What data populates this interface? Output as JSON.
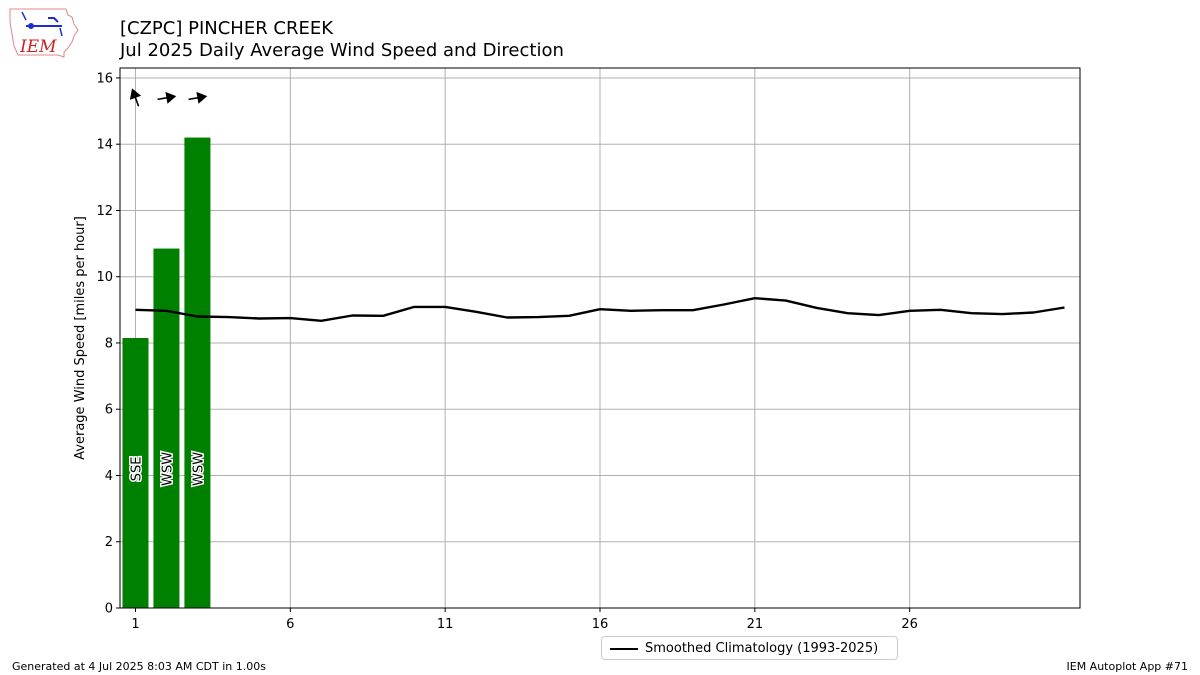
{
  "header": {
    "title_line1": "[CZPC] PINCHER CREEK",
    "title_line2": "Jul 2025 Daily Average Wind Speed and Direction"
  },
  "logo": {
    "text": "IEM"
  },
  "footer": {
    "left": "Generated at 4 Jul 2025 8:03 AM CDT in 1.00s",
    "right": "IEM Autoplot App #71"
  },
  "chart_data": {
    "type": "bar",
    "title": "[CZPC] PINCHER CREEK\nJul 2025 Daily Average Wind Speed and Direction",
    "ylabel": "Average Wind Speed [miles per hour]",
    "xlabel": "",
    "xlim": [
      0.5,
      31.5
    ],
    "ylim": [
      0,
      16.3
    ],
    "xticks": [
      1,
      6,
      11,
      16,
      21,
      26
    ],
    "yticks": [
      0,
      2,
      4,
      6,
      8,
      10,
      12,
      14,
      16
    ],
    "grid": true,
    "legend": {
      "placement": "bottom-center",
      "entries": [
        "Smoothed Climatology (1993-2025)"
      ]
    },
    "series": [
      {
        "type": "bar",
        "color": "#008000",
        "days": [
          1,
          2,
          3
        ],
        "values": [
          8.15,
          10.85,
          14.2
        ],
        "direction_labels": [
          "SSE",
          "WSW",
          "WSW"
        ],
        "arrow_bearings_deg": [
          -20,
          80,
          80
        ]
      },
      {
        "type": "line",
        "name": "Smoothed Climatology (1993-2025)",
        "color": "#000000",
        "x": [
          1,
          2,
          3,
          4,
          5,
          6,
          7,
          8,
          9,
          10,
          11,
          12,
          13,
          14,
          15,
          16,
          17,
          18,
          19,
          20,
          21,
          22,
          23,
          24,
          25,
          26,
          27,
          28,
          29,
          30,
          31
        ],
        "values": [
          9.0,
          8.97,
          8.8,
          8.78,
          8.74,
          8.75,
          8.67,
          8.83,
          8.82,
          9.09,
          9.09,
          8.94,
          8.77,
          8.78,
          8.82,
          9.02,
          8.97,
          8.99,
          8.99,
          9.16,
          9.35,
          9.28,
          9.06,
          8.9,
          8.84,
          8.97,
          9.0,
          8.9,
          8.87,
          8.92,
          9.07
        ]
      }
    ]
  }
}
